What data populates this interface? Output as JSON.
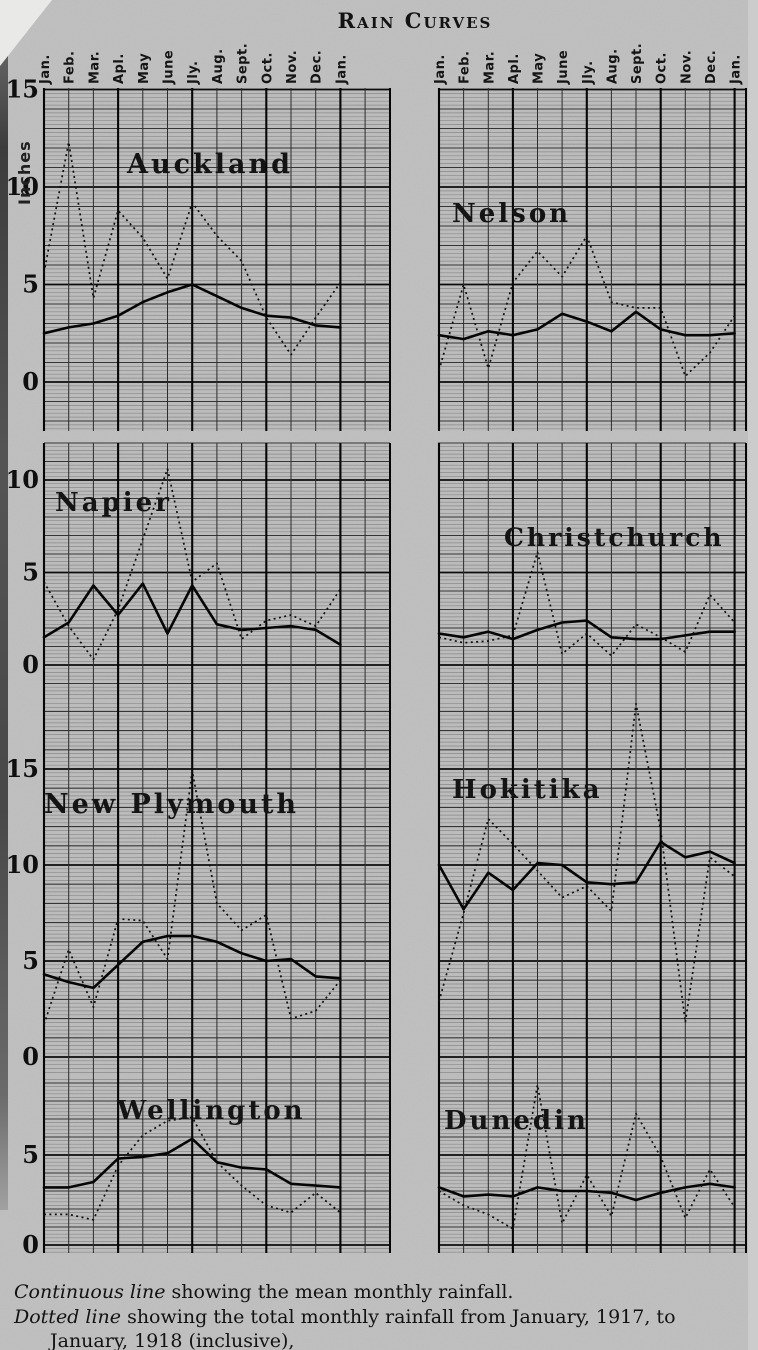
{
  "page": {
    "title": "Rain Curves",
    "paper_color": "#c6c6c6",
    "ink_color": "#111111"
  },
  "caption": {
    "line1_lead": "Continuous line",
    "line1_rest": " showing the mean monthly rainfall.",
    "line2_lead": "Dotted line",
    "line2_rest": " showing the total monthly rainfall from January, 1917, to January, 1918 (inclusive),"
  },
  "chart_data": {
    "type": "line",
    "title": "Rain Curves",
    "ylabel": "Inches",
    "units": "inches",
    "grid": true,
    "x_categories": [
      "Jan.",
      "Feb.",
      "Mar.",
      "Apl.",
      "May",
      "June",
      "Jly.",
      "Aug.",
      "Sept.",
      "Oct.",
      "Nov.",
      "Dec.",
      "Jan."
    ],
    "series_legend": {
      "solid": "Mean monthly rainfall",
      "dotted": "Total monthly rainfall from January, 1917, to January, 1918 (inclusive)"
    },
    "rows": [
      {
        "yticks": [
          15,
          10,
          5,
          0
        ],
        "show_ylabel": true
      },
      {
        "yticks": [
          10,
          5,
          0
        ],
        "show_ylabel": false
      },
      {
        "yticks": [
          15,
          10,
          5,
          0
        ],
        "show_ylabel": false
      },
      {
        "yticks": [
          5,
          0
        ],
        "show_ylabel": false
      }
    ],
    "cities": [
      {
        "name": "Auckland",
        "row": 0,
        "col": 0,
        "mean": [
          2.5,
          2.8,
          3.0,
          3.4,
          4.1,
          4.6,
          5.0,
          4.4,
          3.8,
          3.4,
          3.3,
          2.9,
          2.8
        ],
        "total_1917": [
          5.6,
          12.3,
          4.3,
          8.8,
          7.4,
          5.3,
          9.2,
          7.5,
          6.2,
          3.3,
          1.4,
          3.3,
          5.1
        ]
      },
      {
        "name": "Nelson",
        "row": 0,
        "col": 1,
        "mean": [
          2.4,
          2.2,
          2.6,
          2.4,
          2.7,
          3.5,
          3.1,
          2.6,
          3.6,
          2.7,
          2.4,
          2.4,
          2.5
        ],
        "total_1917": [
          0.6,
          5.0,
          0.7,
          5.1,
          6.7,
          5.4,
          7.5,
          4.1,
          3.8,
          3.8,
          0.3,
          1.5,
          3.4
        ]
      },
      {
        "name": "Napier",
        "row": 1,
        "col": 0,
        "mean": [
          1.5,
          2.3,
          4.3,
          2.7,
          4.4,
          1.7,
          4.3,
          2.2,
          1.9,
          2.0,
          2.1,
          1.9,
          1.1
        ],
        "total_1917": [
          4.5,
          2.1,
          0.3,
          3.0,
          6.8,
          10.6,
          4.5,
          5.5,
          1.4,
          2.4,
          2.7,
          2.1,
          4.1
        ]
      },
      {
        "name": "Christchurch",
        "row": 1,
        "col": 1,
        "mean": [
          1.7,
          1.5,
          1.8,
          1.4,
          1.9,
          2.3,
          2.4,
          1.5,
          1.4,
          1.4,
          1.6,
          1.8,
          1.8
        ],
        "total_1917": [
          1.5,
          1.2,
          1.3,
          1.6,
          6.1,
          0.6,
          1.7,
          0.5,
          2.2,
          1.5,
          0.7,
          3.8,
          2.3
        ]
      },
      {
        "name": "New Plymouth",
        "row": 2,
        "col": 0,
        "mean": [
          4.3,
          3.9,
          3.6,
          4.8,
          6.0,
          6.3,
          6.3,
          6.0,
          5.4,
          5.0,
          5.1,
          4.2,
          4.1
        ],
        "total_1917": [
          1.7,
          5.6,
          2.6,
          7.2,
          7.1,
          5.1,
          14.9,
          8.0,
          6.6,
          7.4,
          2.0,
          2.4,
          4.0
        ]
      },
      {
        "name": "Hokitika",
        "row": 2,
        "col": 1,
        "mean": [
          10.0,
          7.7,
          9.6,
          8.7,
          10.1,
          10.0,
          9.1,
          9.0,
          9.1,
          11.2,
          10.4,
          10.7,
          10.1
        ],
        "total_1917": [
          2.9,
          7.5,
          12.4,
          11.1,
          9.7,
          8.3,
          8.9,
          7.6,
          18.4,
          11.8,
          1.8,
          10.4,
          9.4
        ]
      },
      {
        "name": "Wellington",
        "row": 3,
        "col": 0,
        "mean": [
          3.2,
          3.2,
          3.5,
          4.8,
          4.9,
          5.1,
          5.9,
          4.6,
          4.3,
          4.2,
          3.4,
          3.3,
          3.2
        ],
        "total_1917": [
          1.7,
          1.7,
          1.4,
          4.4,
          6.1,
          6.9,
          7.1,
          4.6,
          3.3,
          2.2,
          1.8,
          2.9,
          1.8
        ]
      },
      {
        "name": "Dunedin",
        "row": 3,
        "col": 1,
        "mean": [
          3.2,
          2.7,
          2.8,
          2.7,
          3.2,
          3.0,
          3.0,
          2.9,
          2.5,
          2.9,
          3.2,
          3.4,
          3.2
        ],
        "total_1917": [
          3.0,
          2.2,
          1.7,
          0.9,
          8.9,
          1.2,
          3.9,
          1.6,
          7.3,
          4.9,
          1.5,
          4.2,
          2.1
        ]
      }
    ]
  }
}
